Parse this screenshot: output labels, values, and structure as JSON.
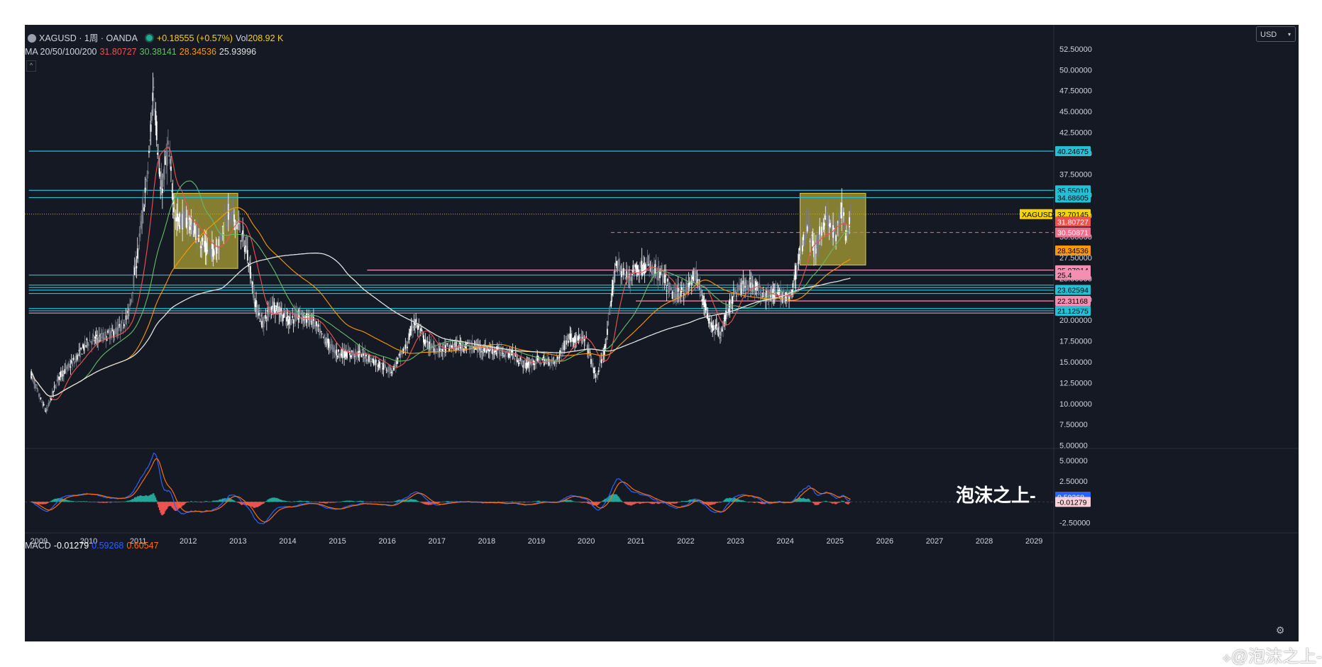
{
  "header": {
    "symbol": "XAGUSD · 1周 · OANDA",
    "change": "+0.18555 (+0.57%)",
    "vol_label": "Vol",
    "vol_value": "208.92 K",
    "ma_label": "MA 20/50/100/200",
    "ma20": "31.80727",
    "ma50": "30.38141",
    "ma100": "28.34536",
    "ma200": "25.93996",
    "currency": "USD",
    "macd_label": "MACD",
    "macd_hist": "-0.01279",
    "macd_line": "0.59268",
    "macd_signal": "0.60547"
  },
  "watermark": "泡沫之上-",
  "corner_credit": "@泡沫之上-",
  "colors": {
    "background": "#151924",
    "up": "#ffffff",
    "ma20": "#ef5350",
    "ma50": "#66bb6a",
    "ma100": "#ff9800",
    "ma200": "#e0e0e0",
    "macd_line": "#2962ff",
    "macd_signal": "#ff6d00",
    "cyan": "#22c1d6",
    "pink": "#f48fb1",
    "highlight_box": "#c9bd3a"
  },
  "chart_data": {
    "type": "candlestick",
    "symbol": "XAGUSD",
    "timeframe": "1周",
    "x_axis_labels": [
      "2009",
      "2010",
      "2011",
      "2012",
      "2013",
      "2014",
      "2015",
      "2016",
      "2017",
      "2018",
      "2019",
      "2020",
      "2021",
      "2022",
      "2023",
      "2024",
      "2025",
      "2026",
      "2027",
      "2028",
      "2029"
    ],
    "price_axis_labels": [
      "52.50000",
      "50.00000",
      "47.50000",
      "45.00000",
      "42.50000",
      "40.00000",
      "37.50000",
      "35.00000",
      "32.50000",
      "30.00000",
      "27.50000",
      "25.00000",
      "22.50000",
      "20.00000",
      "17.50000",
      "15.00000",
      "12.50000",
      "10.00000",
      "7.50000",
      "5.00000"
    ],
    "price_ylim": [
      4.8,
      53
    ],
    "macd_axis_labels": [
      "5.00000",
      "2.50000",
      "-2.50000"
    ],
    "macd_ylim": [
      -3.5,
      6.2
    ],
    "price_tags": [
      {
        "value": 40.24675,
        "label": "40.24675",
        "color": "#22c1d6"
      },
      {
        "value": 35.5501,
        "label": "35.55010",
        "color": "#22c1d6"
      },
      {
        "value": 34.68605,
        "label": "34.68605",
        "color": "#22c1d6"
      },
      {
        "value": 32.70145,
        "label": "32.70145",
        "color": "#f5d300",
        "name": "XAGUSD"
      },
      {
        "value": 31.80727,
        "label": "31.80727",
        "color": "#ef5350"
      },
      {
        "value": 30.50871,
        "label": "30.50871",
        "color": "#ef6f8c"
      },
      {
        "value": 28.34536,
        "label": "28.34536",
        "color": "#ff9800"
      },
      {
        "value": 25.97914,
        "label": "25.97914",
        "color": "#f48fb1"
      },
      {
        "value": 25.4,
        "label": "25.4",
        "color": "#f48fb1"
      },
      {
        "value": 23.62594,
        "label": "23.62594",
        "color": "#22c1d6"
      },
      {
        "value": 22.31168,
        "label": "22.31168",
        "color": "#f48fb1"
      },
      {
        "value": 21.12575,
        "label": "21.12575",
        "color": "#22c1d6"
      }
    ],
    "macd_tags": [
      {
        "value": 0.60547,
        "label": "0.60547",
        "color": "#ff6d00"
      },
      {
        "value": 0.59268,
        "label": "0.59268",
        "color": "#2962ff"
      },
      {
        "value": -0.01279,
        "label": "-0.01279",
        "color": "#ffffff"
      }
    ],
    "horizontal_levels": [
      {
        "value": 40.24675,
        "color": "#22c1d6",
        "from": 2008.8
      },
      {
        "value": 35.5501,
        "color": "#22c1d6",
        "from": 2008.8
      },
      {
        "value": 34.68605,
        "color": "#22c1d6",
        "from": 2008.8
      },
      {
        "value": 26.0,
        "color": "#f48fb1",
        "from": 2015.6
      },
      {
        "value": 25.4,
        "color": "#22c1d6",
        "from": 2008.8
      },
      {
        "value": 24.2,
        "color": "#22c1d6",
        "from": 2008.8
      },
      {
        "value": 23.9,
        "color": "#22c1d6",
        "from": 2008.8
      },
      {
        "value": 23.6,
        "color": "#22c1d6",
        "from": 2008.8
      },
      {
        "value": 23.2,
        "color": "#22c1d6",
        "from": 2008.8
      },
      {
        "value": 22.3,
        "color": "#f48fb1",
        "from": 2021.0
      },
      {
        "value": 21.4,
        "color": "#22c1d6",
        "from": 2008.8
      },
      {
        "value": 21.12575,
        "color": "#22c1d6",
        "from": 2008.8
      },
      {
        "value": 20.85,
        "color": "#f48fb1",
        "from": 2008.8
      }
    ],
    "highlight_boxes": [
      {
        "x0": 2011.72,
        "x1": 2013.0,
        "y0": 26.2,
        "y1": 35.2
      },
      {
        "x0": 2024.3,
        "x1": 2025.62,
        "y0": 26.6,
        "y1": 35.2
      }
    ],
    "price_path_keypoints": [
      [
        2008.85,
        13.5
      ],
      [
        2009.0,
        11.0
      ],
      [
        2009.15,
        9.0
      ],
      [
        2009.4,
        13.2
      ],
      [
        2009.7,
        15.0
      ],
      [
        2010.0,
        17.5
      ],
      [
        2010.3,
        18.0
      ],
      [
        2010.6,
        18.8
      ],
      [
        2010.8,
        20.5
      ],
      [
        2011.0,
        28.5
      ],
      [
        2011.2,
        38.0
      ],
      [
        2011.31,
        48.5
      ],
      [
        2011.45,
        35.0
      ],
      [
        2011.6,
        40.5
      ],
      [
        2011.75,
        32.0
      ],
      [
        2012.0,
        32.0
      ],
      [
        2012.2,
        30.0
      ],
      [
        2012.4,
        28.0
      ],
      [
        2012.6,
        29.0
      ],
      [
        2012.8,
        33.0
      ],
      [
        2013.0,
        31.5
      ],
      [
        2013.2,
        28.0
      ],
      [
        2013.35,
        22.0
      ],
      [
        2013.5,
        19.5
      ],
      [
        2013.7,
        22.0
      ],
      [
        2014.0,
        20.0
      ],
      [
        2014.25,
        20.5
      ],
      [
        2014.5,
        20.0
      ],
      [
        2014.7,
        18.0
      ],
      [
        2015.0,
        16.0
      ],
      [
        2015.5,
        16.0
      ],
      [
        2015.9,
        14.5
      ],
      [
        2016.1,
        14.0
      ],
      [
        2016.4,
        17.0
      ],
      [
        2016.55,
        20.0
      ],
      [
        2016.8,
        17.0
      ],
      [
        2017.0,
        16.5
      ],
      [
        2017.5,
        17.0
      ],
      [
        2018.0,
        16.5
      ],
      [
        2018.5,
        16.0
      ],
      [
        2018.8,
        14.5
      ],
      [
        2019.0,
        15.2
      ],
      [
        2019.4,
        15.0
      ],
      [
        2019.65,
        18.0
      ],
      [
        2020.0,
        17.5
      ],
      [
        2020.2,
        13.0
      ],
      [
        2020.4,
        17.0
      ],
      [
        2020.6,
        27.0
      ],
      [
        2020.8,
        25.0
      ],
      [
        2021.0,
        26.0
      ],
      [
        2021.2,
        26.5
      ],
      [
        2021.5,
        25.5
      ],
      [
        2021.75,
        23.0
      ],
      [
        2022.0,
        23.5
      ],
      [
        2022.2,
        25.5
      ],
      [
        2022.5,
        19.5
      ],
      [
        2022.7,
        18.5
      ],
      [
        2022.9,
        22.0
      ],
      [
        2023.0,
        23.5
      ],
      [
        2023.3,
        24.5
      ],
      [
        2023.6,
        23.0
      ],
      [
        2023.9,
        23.0
      ],
      [
        2024.1,
        22.5
      ],
      [
        2024.3,
        28.0
      ],
      [
        2024.45,
        31.5
      ],
      [
        2024.6,
        28.0
      ],
      [
        2024.8,
        32.5
      ],
      [
        2025.0,
        30.0
      ],
      [
        2025.15,
        33.5
      ],
      [
        2025.25,
        29.0
      ],
      [
        2025.32,
        32.7
      ]
    ]
  }
}
